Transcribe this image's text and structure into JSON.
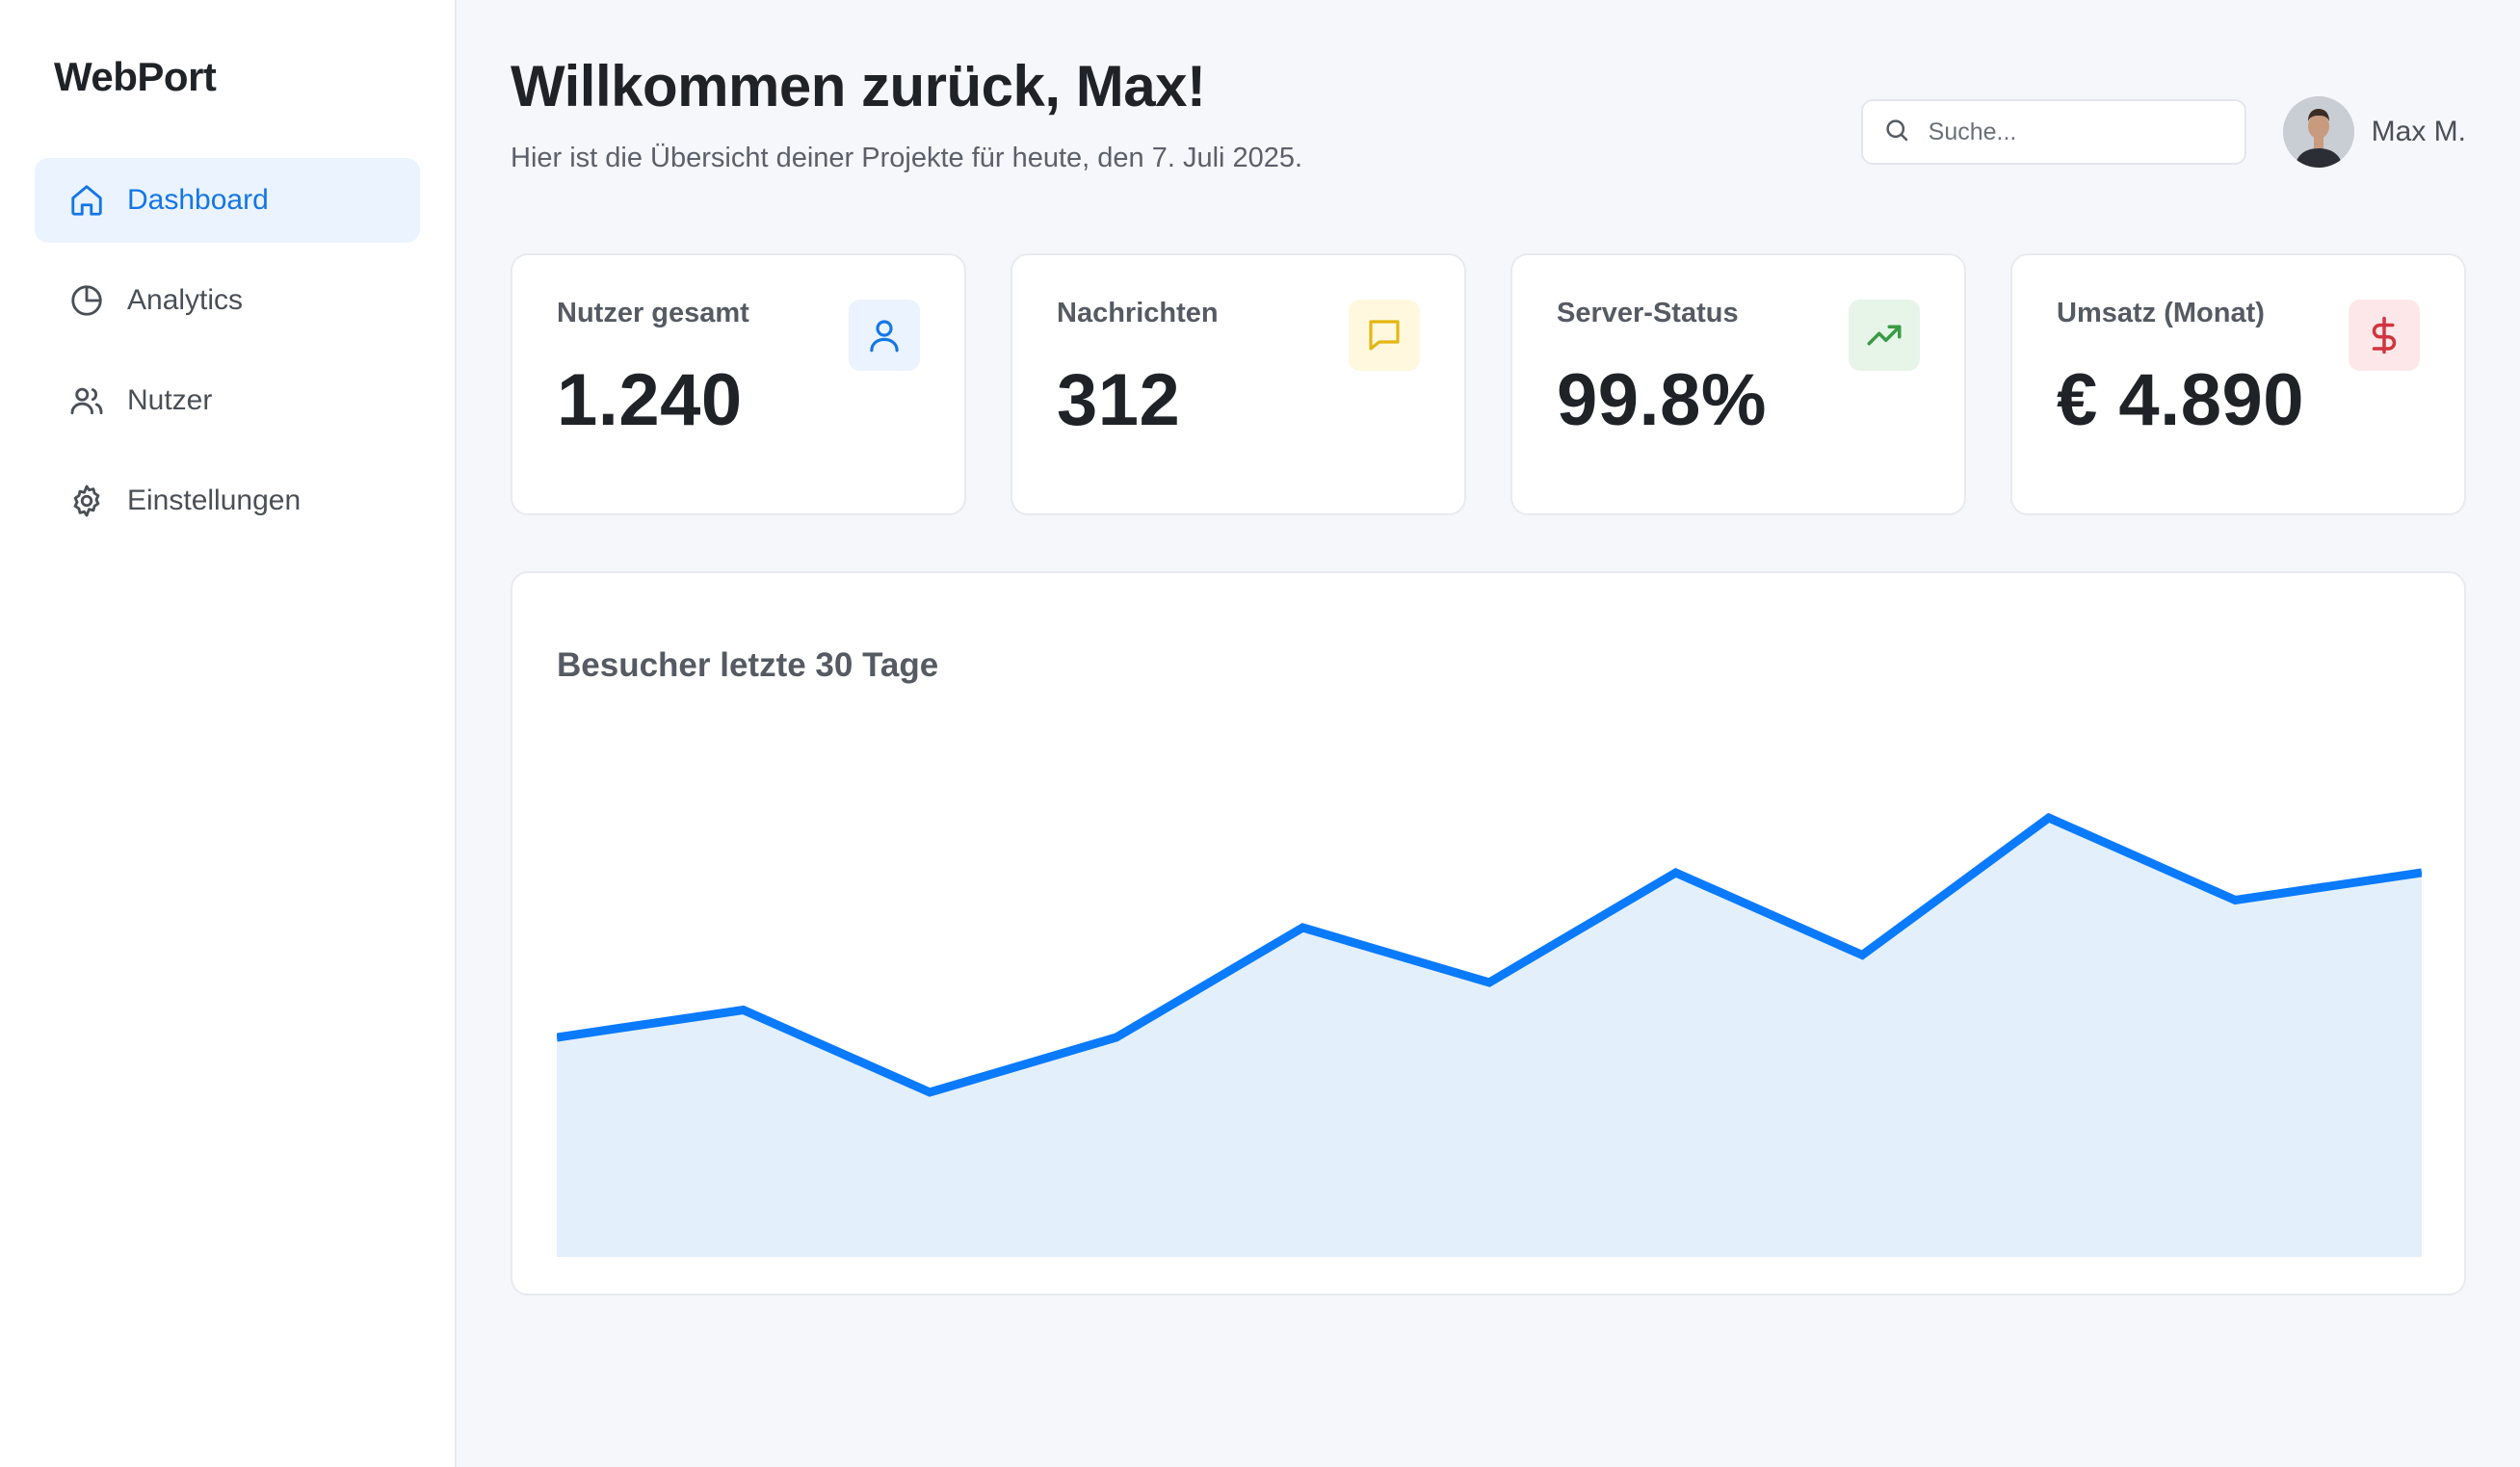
{
  "sidebar": {
    "brand": "WebPort",
    "items": [
      {
        "label": "Dashboard",
        "icon": "home-icon",
        "active": true
      },
      {
        "label": "Analytics",
        "icon": "pie-chart-icon",
        "active": false
      },
      {
        "label": "Nutzer",
        "icon": "users-icon",
        "active": false
      },
      {
        "label": "Einstellungen",
        "icon": "gear-icon",
        "active": false
      }
    ]
  },
  "header": {
    "title": "Willkommen zurück, Max!",
    "subtitle": "Hier ist die Übersicht deiner Projekte für heute, den 7. Juli 2025.",
    "search_placeholder": "Suche...",
    "user_name": "Max M."
  },
  "stats": [
    {
      "label": "Nutzer gesamt",
      "value": "1.240",
      "icon": "user-icon",
      "color": "#1576e6",
      "bg": "#eaf3ff"
    },
    {
      "label": "Nachrichten",
      "value": "312",
      "icon": "message-icon",
      "color": "#e2b714",
      "bg": "#fff8df"
    },
    {
      "label": "Server-Status",
      "value": "99.8%",
      "icon": "trending-up-icon",
      "color": "#3a9b47",
      "bg": "#e6f5e8"
    },
    {
      "label": "Umsatz (Monat)",
      "value": "€ 4.890",
      "icon": "dollar-icon",
      "color": "#d0353f",
      "bg": "#fde7e9"
    }
  ],
  "chart_data": {
    "type": "area",
    "title": "Besucher letzte 30 Tage",
    "xlabel": "",
    "ylabel": "",
    "values": [
      40,
      42,
      36,
      40,
      48,
      44,
      52,
      46,
      56,
      50,
      52
    ],
    "ylim": [
      24,
      64
    ],
    "grid": false,
    "line_color": "#0a7aff",
    "fill_color": "#e3f0fc"
  }
}
